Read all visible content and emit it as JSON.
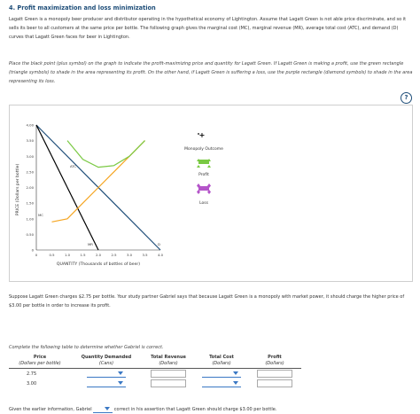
{
  "question": {
    "title": "4. Profit maximization and loss minimization",
    "intro": "Lagatt Green is a monopoly beer producer and distributor operating in the hypothetical economy of Lightington. Assume that Lagatt Green is not able price discriminate, and so it sells its beer to all customers at the same price per bottle. The following graph gives the marginal cost (MC), marginal revenue (MR), average total cost (ATC), and demand (D) curves that Lagatt Green faces for beer in Lightington.",
    "instruction": "Place the black point (plus symbol) on the graph to indicate the profit-maximizing price and quantity for Lagatt Green. If Lagatt Green is making a profit, use the green rectangle (triangle symbols) to shade in the area representing its profit. On the other hand, if Lagatt Green is suffering a loss, use the purple rectangle (diamond symbols) to shade in the area representing its loss.",
    "help": "?"
  },
  "graph": {
    "ylabel": "PRICE (Dollars per bottle)",
    "xlabel": "QUANTITY (Thousands of bottles of beer)",
    "y_ticks": [
      "4.00",
      "3.50",
      "3.00",
      "2.50",
      "2.00",
      "1.50",
      "1.00",
      "0.50",
      "0"
    ],
    "x_ticks": [
      "0",
      "0.5",
      "1.0",
      "1.5",
      "2.0",
      "2.5",
      "3.0",
      "3.5",
      "4.0"
    ],
    "curve_labels": {
      "atc": "ATC",
      "mc": "MC",
      "mr": "MR",
      "d": "D"
    },
    "colors": {
      "atc": "#7ac943",
      "mc": "#f5a623",
      "demand": "#1f4e79",
      "mr": "#000000",
      "profit": "#7ac943",
      "loss": "#b455c9"
    }
  },
  "legend": {
    "monopoly_outcome": "Monopoly Outcome",
    "profit": "Profit",
    "loss": "Loss"
  },
  "chart_data": {
    "type": "line",
    "ylabel": "PRICE (Dollars per bottle)",
    "xlabel": "QUANTITY (Thousands of bottles of beer)",
    "xlim": [
      0,
      4.0
    ],
    "ylim": [
      0,
      4.0
    ],
    "series": [
      {
        "name": "D",
        "x": [
          0,
          4.0
        ],
        "y": [
          4.0,
          0
        ]
      },
      {
        "name": "MR",
        "x": [
          0,
          2.0
        ],
        "y": [
          4.0,
          0
        ]
      },
      {
        "name": "MC",
        "x": [
          0.5,
          1.0,
          1.5,
          2.0,
          2.5,
          3.0,
          3.5
        ],
        "y": [
          0.9,
          1.0,
          1.5,
          2.0,
          2.5,
          3.0,
          3.5
        ]
      },
      {
        "name": "ATC",
        "x": [
          1.0,
          1.5,
          2.0,
          2.5,
          3.0,
          3.5
        ],
        "y": [
          3.5,
          2.9,
          2.65,
          2.7,
          3.0,
          3.5
        ]
      }
    ]
  },
  "part2": {
    "text": "Suppose Lagatt Green charges $2.75 per bottle. Your study partner Gabriel says that because Lagatt Green is a monopoly with market power, it should charge the higher price of $3.00 per bottle in order to increase its profit.",
    "complete": "Complete the following table to determine whether Gabriel is correct.",
    "table": {
      "headers": [
        {
          "label": "Price",
          "sub": "(Dollars per bottle)"
        },
        {
          "label": "Quantity Demanded",
          "sub": "(Cans)"
        },
        {
          "label": "Total Revenue",
          "sub": "(Dollars)"
        },
        {
          "label": "Total Cost",
          "sub": "(Dollars)"
        },
        {
          "label": "Profit",
          "sub": "(Dollars)"
        }
      ],
      "rows": [
        {
          "price": "2.75"
        },
        {
          "price": "3.00"
        }
      ]
    },
    "bottom_prefix": "Given the earlier information, Gabriel",
    "bottom_suffix": "correct in his assertion that Lagatt Green should charge $3.00 per bottle."
  }
}
